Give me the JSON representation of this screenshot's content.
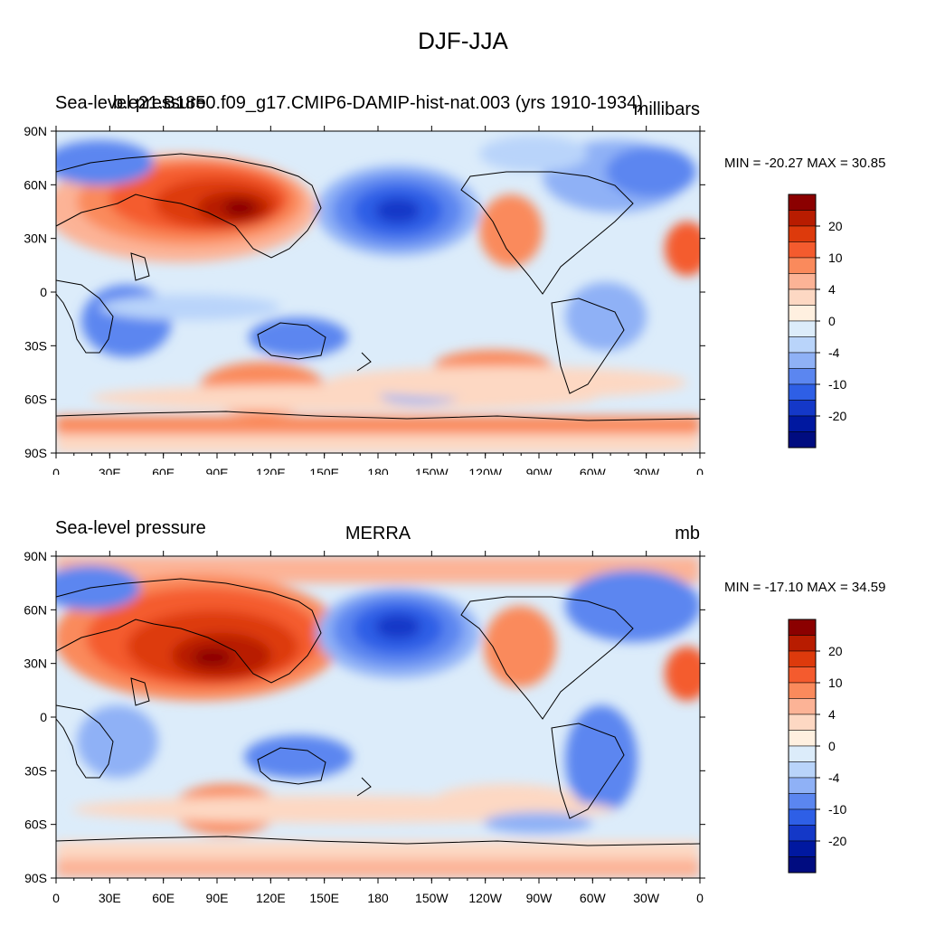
{
  "figure": {
    "title": "DJF-JJA"
  },
  "panels": [
    {
      "left_label": "Sea-level pressure",
      "center_label": "b.e21.B1850.f09_g17.CMIP6-DAMIP-hist-nat.003 (yrs 1910-1934)",
      "right_label": "millibars",
      "minmax": "MIN = -20.27 MAX =  30.85",
      "lat_ticks": [
        "90N",
        "60N",
        "30N",
        "0",
        "30S",
        "60S",
        "90S"
      ],
      "lon_ticks": [
        "0",
        "30E",
        "60E",
        "90E",
        "120E",
        "150E",
        "180",
        "150W",
        "120W",
        "90W",
        "60W",
        "30W",
        "0"
      ],
      "colorbar_labels": [
        "20",
        "10",
        "4",
        "0",
        "-4",
        "-10",
        "-20"
      ]
    },
    {
      "left_label": "Sea-level pressure",
      "center_label": "MERRA",
      "right_label": "mb",
      "minmax": "MIN = -17.10 MAX =  34.59",
      "lat_ticks": [
        "90N",
        "60N",
        "30N",
        "0",
        "30S",
        "60S",
        "90S"
      ],
      "lon_ticks": [
        "0",
        "30E",
        "60E",
        "90E",
        "120E",
        "150E",
        "180",
        "150W",
        "120W",
        "90W",
        "60W",
        "30W",
        "0"
      ],
      "colorbar_labels": [
        "20",
        "10",
        "4",
        "0",
        "-4",
        "-10",
        "-20"
      ]
    }
  ],
  "palette": [
    "#8b0000",
    "#b81c00",
    "#dd3a0c",
    "#f45b2e",
    "#fa8a5c",
    "#fcb396",
    "#fdd8c3",
    "#fff0e0",
    "#dcecfa",
    "#b9d4fa",
    "#8fb1f6",
    "#5b86f0",
    "#2e5fe6",
    "#1438c8",
    "#0018a0",
    "#000c80"
  ]
}
